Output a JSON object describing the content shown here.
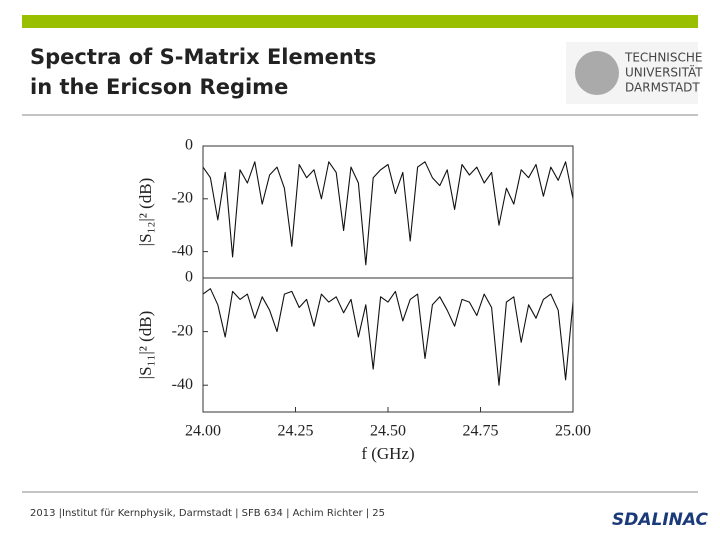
{
  "header": {
    "title_lines": [
      "Spectra of S-Matrix Elements",
      "in the Ericson Regime"
    ],
    "logo_lines": [
      "TECHNISCHE",
      "UNIVERSITÄT",
      "DARMSTADT"
    ]
  },
  "footer": {
    "text": "2013 |Institut für Kernphysik, Darmstadt  |  SFB 634 | Achim Richter | 25",
    "logo": "SDALINAC"
  },
  "chart_data": [
    {
      "type": "line",
      "ylabel": "|S₁₂|² (dB)",
      "xlim": [
        24,
        25
      ],
      "ylim": [
        -50,
        0
      ],
      "yticks": [
        -40,
        -20,
        0
      ],
      "x": [
        24.0,
        24.02,
        24.04,
        24.06,
        24.08,
        24.1,
        24.12,
        24.14,
        24.16,
        24.18,
        24.2,
        24.22,
        24.24,
        24.26,
        24.28,
        24.3,
        24.32,
        24.34,
        24.36,
        24.38,
        24.4,
        24.42,
        24.44,
        24.46,
        24.48,
        24.5,
        24.52,
        24.54,
        24.56,
        24.58,
        24.6,
        24.62,
        24.64,
        24.66,
        24.68,
        24.7,
        24.72,
        24.74,
        24.76,
        24.78,
        24.8,
        24.82,
        24.84,
        24.86,
        24.88,
        24.9,
        24.92,
        24.94,
        24.96,
        24.98,
        25.0
      ],
      "series": [
        {
          "color": "#111111",
          "values": [
            -8,
            -12,
            -28,
            -10,
            -42,
            -9,
            -14,
            -6,
            -22,
            -11,
            -8,
            -16,
            -38,
            -7,
            -12,
            -9,
            -20,
            -6,
            -10,
            -32,
            -8,
            -14,
            -45,
            -12,
            -9,
            -7,
            -18,
            -10,
            -36,
            -8,
            -6,
            -12,
            -15,
            -9,
            -24,
            -7,
            -11,
            -8,
            -14,
            -10,
            -30,
            -16,
            -22,
            -9,
            -12,
            -7,
            -19,
            -8,
            -13,
            -6,
            -20
          ]
        }
      ]
    },
    {
      "type": "line",
      "ylabel": "|S₁₁|² (dB)",
      "xlabel": "f (GHz)",
      "xlim": [
        24,
        25
      ],
      "ylim": [
        -50,
        0
      ],
      "yticks": [
        -40,
        -20,
        0
      ],
      "xticks": [
        {
          "value": 24,
          "label": "24.00"
        },
        24.25,
        {
          "value": 24.5,
          "label": "24.50"
        },
        24.75,
        {
          "value": 25,
          "label": "25.00"
        }
      ],
      "x": [
        24.0,
        24.02,
        24.04,
        24.06,
        24.08,
        24.1,
        24.12,
        24.14,
        24.16,
        24.18,
        24.2,
        24.22,
        24.24,
        24.26,
        24.28,
        24.3,
        24.32,
        24.34,
        24.36,
        24.38,
        24.4,
        24.42,
        24.44,
        24.46,
        24.48,
        24.5,
        24.52,
        24.54,
        24.56,
        24.58,
        24.6,
        24.62,
        24.64,
        24.66,
        24.68,
        24.7,
        24.72,
        24.74,
        24.76,
        24.78,
        24.8,
        24.82,
        24.84,
        24.86,
        24.88,
        24.9,
        24.92,
        24.94,
        24.96,
        24.98,
        25.0
      ],
      "series": [
        {
          "color": "#111111",
          "values": [
            -6,
            -4,
            -10,
            -22,
            -5,
            -8,
            -6,
            -15,
            -7,
            -12,
            -20,
            -6,
            -5,
            -11,
            -8,
            -18,
            -6,
            -9,
            -7,
            -13,
            -8,
            -22,
            -10,
            -34,
            -7,
            -9,
            -5,
            -16,
            -8,
            -6,
            -30,
            -10,
            -7,
            -12,
            -18,
            -8,
            -9,
            -14,
            -6,
            -11,
            -40,
            -9,
            -7,
            -24,
            -10,
            -15,
            -8,
            -6,
            -12,
            -38,
            -9
          ]
        }
      ]
    }
  ]
}
